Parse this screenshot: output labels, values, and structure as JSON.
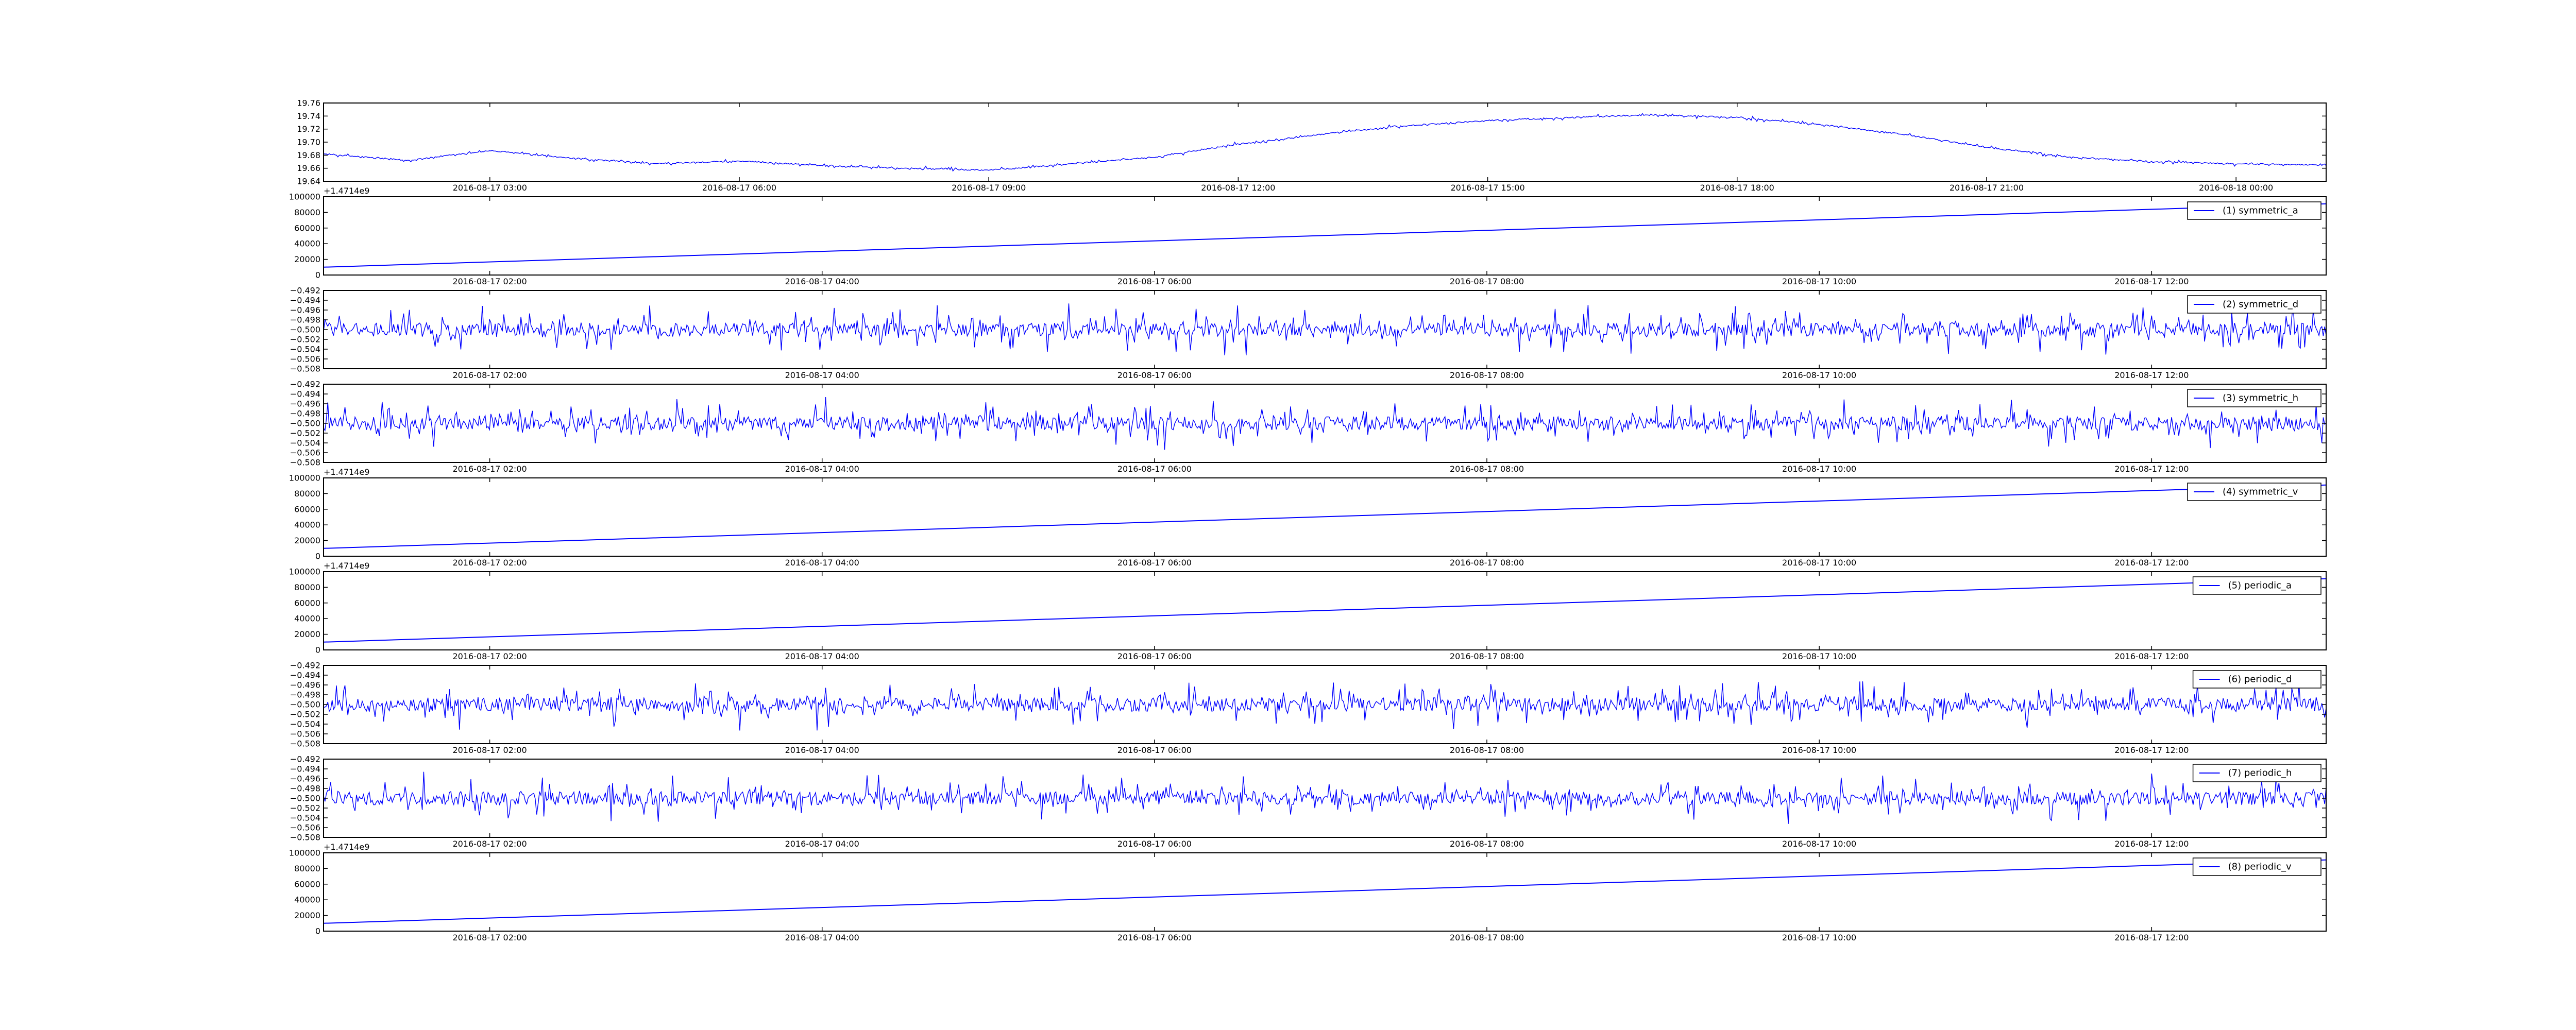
{
  "chart_data": [
    {
      "type": "line",
      "title": "",
      "xlabel": "",
      "ylabel": "",
      "x_tick_labels": [
        "2016-08-17 03:00",
        "2016-08-17 06:00",
        "2016-08-17 09:00",
        "2016-08-17 12:00",
        "2016-08-17 15:00",
        "2016-08-17 18:00",
        "2016-08-17 21:00",
        "2016-08-18 00:00"
      ],
      "x_domain": [
        "2016-08-17 01:00",
        "2016-08-18 01:05"
      ],
      "ylim": [
        19.64,
        19.76
      ],
      "y_tick_labels": [
        "19.64",
        "19.66",
        "19.68",
        "19.70",
        "19.72",
        "19.74",
        "19.76"
      ],
      "y_offset_text": "",
      "grid": false,
      "legend": null,
      "series": [
        {
          "color": "#0000ff",
          "x": [
            "2016-08-17 01:00",
            "2016-08-17 02:00",
            "2016-08-17 03:00",
            "2016-08-17 04:00",
            "2016-08-17 05:00",
            "2016-08-17 06:00",
            "2016-08-17 07:00",
            "2016-08-17 08:00",
            "2016-08-17 09:00",
            "2016-08-17 10:00",
            "2016-08-17 11:00",
            "2016-08-17 12:00",
            "2016-08-17 13:00",
            "2016-08-17 14:00",
            "2016-08-17 15:00",
            "2016-08-17 16:00",
            "2016-08-17 17:00",
            "2016-08-17 18:00",
            "2016-08-17 19:00",
            "2016-08-17 20:00",
            "2016-08-17 21:00",
            "2016-08-17 22:00",
            "2016-08-17 23:00",
            "2016-08-18 00:00",
            "2016-08-18 01:05"
          ],
          "values": [
            19.682,
            19.672,
            19.687,
            19.675,
            19.667,
            19.671,
            19.664,
            19.66,
            19.657,
            19.667,
            19.677,
            19.697,
            19.712,
            19.725,
            19.733,
            19.738,
            19.742,
            19.738,
            19.727,
            19.712,
            19.692,
            19.677,
            19.67,
            19.667,
            19.665
          ],
          "noise": 0.004
        }
      ]
    },
    {
      "type": "line",
      "x_tick_labels": [
        "2016-08-17 02:00",
        "2016-08-17 04:00",
        "2016-08-17 06:00",
        "2016-08-17 08:00",
        "2016-08-17 10:00",
        "2016-08-17 12:00"
      ],
      "x_domain": [
        "2016-08-17 01:00",
        "2016-08-17 13:03"
      ],
      "ylim": [
        0,
        100000
      ],
      "y_tick_labels": [
        "0",
        "20000",
        "40000",
        "60000",
        "80000",
        "100000"
      ],
      "y_offset_text": "+1.4714e9",
      "grid": false,
      "legend": "top-right",
      "series": [
        {
          "name": "(1) symmetric_a",
          "color": "#0000ff",
          "x": [
            "2016-08-17 01:00",
            "2016-08-17 13:03"
          ],
          "values": [
            10000,
            91000
          ],
          "noise": 0
        }
      ]
    },
    {
      "type": "line",
      "x_tick_labels": [
        "2016-08-17 02:00",
        "2016-08-17 04:00",
        "2016-08-17 06:00",
        "2016-08-17 08:00",
        "2016-08-17 10:00",
        "2016-08-17 12:00"
      ],
      "x_domain": [
        "2016-08-17 01:00",
        "2016-08-17 13:03"
      ],
      "ylim": [
        -0.508,
        -0.492
      ],
      "y_tick_labels": [
        "−0.508",
        "−0.506",
        "−0.504",
        "−0.502",
        "−0.500",
        "−0.498",
        "−0.496",
        "−0.494",
        "−0.492"
      ],
      "y_offset_text": "",
      "grid": false,
      "legend": "top-right",
      "series": [
        {
          "name": "(2) symmetric_d",
          "color": "#0000ff",
          "x": [
            "2016-08-17 01:00",
            "2016-08-17 13:03"
          ],
          "values": [
            -0.5,
            -0.5
          ],
          "noise": 0.0055
        }
      ]
    },
    {
      "type": "line",
      "x_tick_labels": [
        "2016-08-17 02:00",
        "2016-08-17 04:00",
        "2016-08-17 06:00",
        "2016-08-17 08:00",
        "2016-08-17 10:00",
        "2016-08-17 12:00"
      ],
      "x_domain": [
        "2016-08-17 01:00",
        "2016-08-17 13:03"
      ],
      "ylim": [
        -0.508,
        -0.492
      ],
      "y_tick_labels": [
        "−0.508",
        "−0.506",
        "−0.504",
        "−0.502",
        "−0.500",
        "−0.498",
        "−0.496",
        "−0.494",
        "−0.492"
      ],
      "y_offset_text": "",
      "grid": false,
      "legend": "top-right",
      "series": [
        {
          "name": "(3) symmetric_h",
          "color": "#0000ff",
          "x": [
            "2016-08-17 01:00",
            "2016-08-17 13:03"
          ],
          "values": [
            -0.5,
            -0.5
          ],
          "noise": 0.0055
        }
      ]
    },
    {
      "type": "line",
      "x_tick_labels": [
        "2016-08-17 02:00",
        "2016-08-17 04:00",
        "2016-08-17 06:00",
        "2016-08-17 08:00",
        "2016-08-17 10:00",
        "2016-08-17 12:00"
      ],
      "x_domain": [
        "2016-08-17 01:00",
        "2016-08-17 13:03"
      ],
      "ylim": [
        0,
        100000
      ],
      "y_tick_labels": [
        "0",
        "20000",
        "40000",
        "60000",
        "80000",
        "100000"
      ],
      "y_offset_text": "+1.4714e9",
      "grid": false,
      "legend": "top-right",
      "series": [
        {
          "name": "(4) symmetric_v",
          "color": "#0000ff",
          "x": [
            "2016-08-17 01:00",
            "2016-08-17 13:03"
          ],
          "values": [
            10000,
            91000
          ],
          "noise": 0
        }
      ]
    },
    {
      "type": "line",
      "x_tick_labels": [
        "2016-08-17 02:00",
        "2016-08-17 04:00",
        "2016-08-17 06:00",
        "2016-08-17 08:00",
        "2016-08-17 10:00",
        "2016-08-17 12:00"
      ],
      "x_domain": [
        "2016-08-17 01:00",
        "2016-08-17 13:03"
      ],
      "ylim": [
        0,
        100000
      ],
      "y_tick_labels": [
        "0",
        "20000",
        "40000",
        "60000",
        "80000",
        "100000"
      ],
      "y_offset_text": "+1.4714e9",
      "grid": false,
      "legend": "top-right",
      "series": [
        {
          "name": "(5) periodic_a",
          "color": "#0000ff",
          "x": [
            "2016-08-17 01:00",
            "2016-08-17 13:03"
          ],
          "values": [
            10000,
            91000
          ],
          "noise": 0
        }
      ]
    },
    {
      "type": "line",
      "x_tick_labels": [
        "2016-08-17 02:00",
        "2016-08-17 04:00",
        "2016-08-17 06:00",
        "2016-08-17 08:00",
        "2016-08-17 10:00",
        "2016-08-17 12:00"
      ],
      "x_domain": [
        "2016-08-17 01:00",
        "2016-08-17 13:03"
      ],
      "ylim": [
        -0.508,
        -0.492
      ],
      "y_tick_labels": [
        "−0.508",
        "−0.506",
        "−0.504",
        "−0.502",
        "−0.500",
        "−0.498",
        "−0.496",
        "−0.494",
        "−0.492"
      ],
      "y_offset_text": "",
      "grid": false,
      "legend": "top-right",
      "series": [
        {
          "name": "(6) periodic_d",
          "color": "#0000ff",
          "x": [
            "2016-08-17 01:00",
            "2016-08-17 13:03"
          ],
          "values": [
            -0.5,
            -0.5
          ],
          "noise": 0.0055
        }
      ]
    },
    {
      "type": "line",
      "x_tick_labels": [
        "2016-08-17 02:00",
        "2016-08-17 04:00",
        "2016-08-17 06:00",
        "2016-08-17 08:00",
        "2016-08-17 10:00",
        "2016-08-17 12:00"
      ],
      "x_domain": [
        "2016-08-17 01:00",
        "2016-08-17 13:03"
      ],
      "ylim": [
        -0.508,
        -0.492
      ],
      "y_tick_labels": [
        "−0.508",
        "−0.506",
        "−0.504",
        "−0.502",
        "−0.500",
        "−0.498",
        "−0.496",
        "−0.494",
        "−0.492"
      ],
      "y_offset_text": "",
      "grid": false,
      "legend": "top-right",
      "series": [
        {
          "name": "(7) periodic_h",
          "color": "#0000ff",
          "x": [
            "2016-08-17 01:00",
            "2016-08-17 13:03"
          ],
          "values": [
            -0.5,
            -0.5
          ],
          "noise": 0.0055
        }
      ]
    },
    {
      "type": "line",
      "x_tick_labels": [
        "2016-08-17 02:00",
        "2016-08-17 04:00",
        "2016-08-17 06:00",
        "2016-08-17 08:00",
        "2016-08-17 10:00",
        "2016-08-17 12:00"
      ],
      "x_domain": [
        "2016-08-17 01:00",
        "2016-08-17 13:03"
      ],
      "ylim": [
        0,
        100000
      ],
      "y_tick_labels": [
        "0",
        "20000",
        "40000",
        "60000",
        "80000",
        "100000"
      ],
      "y_offset_text": "+1.4714e9",
      "grid": false,
      "legend": "top-right",
      "series": [
        {
          "name": "(8) periodic_v",
          "color": "#0000ff",
          "x": [
            "2016-08-17 01:00",
            "2016-08-17 13:03"
          ],
          "values": [
            10000,
            91000
          ],
          "noise": 0
        }
      ]
    }
  ]
}
